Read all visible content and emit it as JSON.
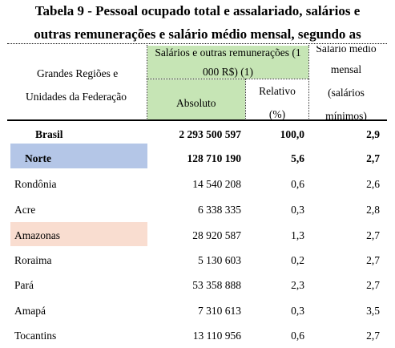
{
  "table": {
    "title_line1": "Tabela 9 - Pessoal ocupado total e assalariado, salários e",
    "title_line2": "outras remunerações e salário médio mensal, segundo as",
    "header": {
      "region_line1": "Grandes Regiões e",
      "region_line2": "Unidades da Federação",
      "salarios_group_line1": "Salários e outras remunerações (1",
      "salarios_group_line2": "000 R$) (1)",
      "absoluto": "Absoluto",
      "relativo_line1": "Relativo",
      "relativo_line2": "(%)",
      "medio_line1": "Salário médio",
      "medio_line2": "mensal",
      "medio_line3": "(salários",
      "medio_line4": "mínimos)"
    },
    "rows": [
      {
        "name": "Brasil",
        "absoluto": "2 293 500 597",
        "relativo": "100,0",
        "medio": "2,9"
      },
      {
        "name": "Norte",
        "absoluto": "128 710 190",
        "relativo": "5,6",
        "medio": "2,7"
      },
      {
        "name": "Rondônia",
        "absoluto": "14 540 208",
        "relativo": "0,6",
        "medio": "2,6"
      },
      {
        "name": "Acre",
        "absoluto": "6 338 335",
        "relativo": "0,3",
        "medio": "2,8"
      },
      {
        "name": "Amazonas",
        "absoluto": "28 920 587",
        "relativo": "1,3",
        "medio": "2,7"
      },
      {
        "name": "Roraima",
        "absoluto": "5 130 603",
        "relativo": "0,2",
        "medio": "2,7"
      },
      {
        "name": "Pará",
        "absoluto": "53 358 888",
        "relativo": "2,3",
        "medio": "2,7"
      },
      {
        "name": "Amapá",
        "absoluto": "7 310 613",
        "relativo": "0,3",
        "medio": "3,5"
      },
      {
        "name": "Tocantins",
        "absoluto": "13 110 956",
        "relativo": "0,6",
        "medio": "2,7"
      }
    ],
    "colors": {
      "green_header": "#c6e5b5",
      "norte_highlight": "#b4c6e7",
      "amazonas_highlight": "#f9ddd0"
    }
  }
}
